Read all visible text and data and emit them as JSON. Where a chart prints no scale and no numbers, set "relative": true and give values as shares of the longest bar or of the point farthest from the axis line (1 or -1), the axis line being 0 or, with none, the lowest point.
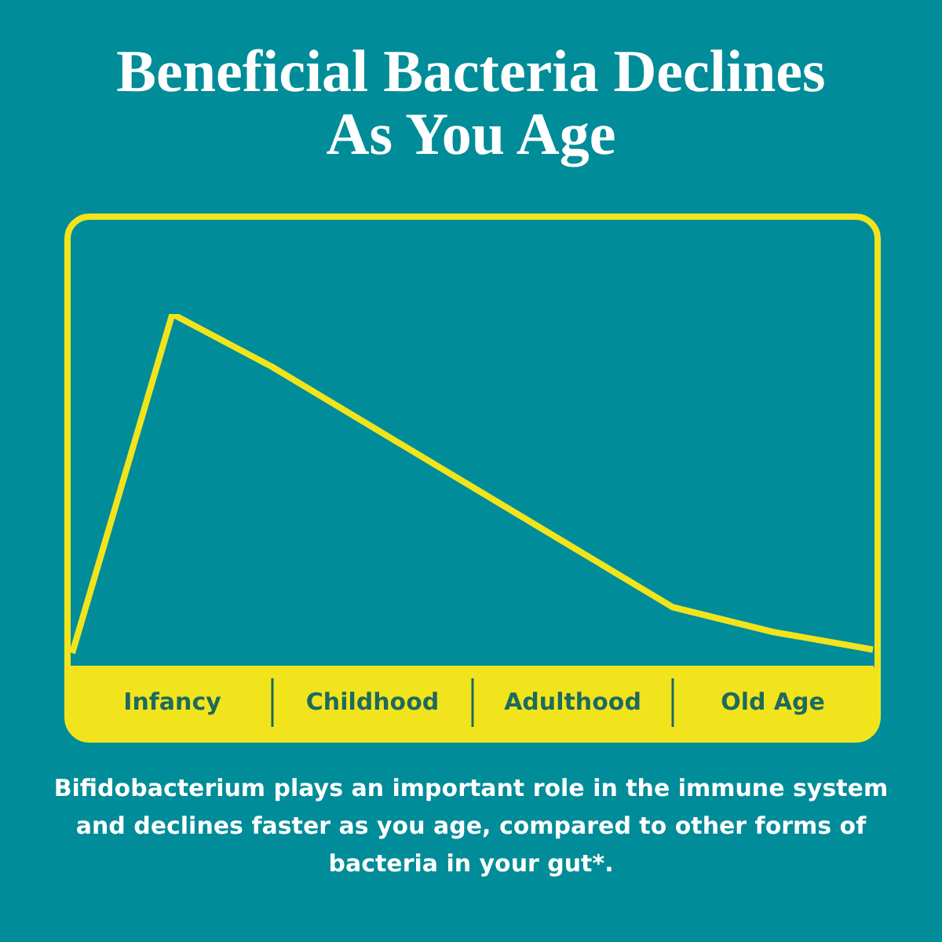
{
  "chart_data": {
    "type": "line",
    "title": "Beneficial Bacteria Declines As You Age",
    "annotations": [
      "Bifidobacterium plays an important role in the immune system and declines faster as you age, compared to other forms of bacteria in your gut*."
    ],
    "relative": true,
    "categories": [
      null,
      "Infancy",
      null,
      "Childhood",
      null,
      "Adulthood",
      null,
      "Old Age",
      null
    ],
    "series": [
      {
        "color": "#f2e41c",
        "values": [
          0.04,
          1,
          0.85,
          0.68,
          0.51,
          0.34,
          0.17,
          0.1,
          0.05
        ]
      }
    ],
    "grid": false,
    "legend": false
  }
}
